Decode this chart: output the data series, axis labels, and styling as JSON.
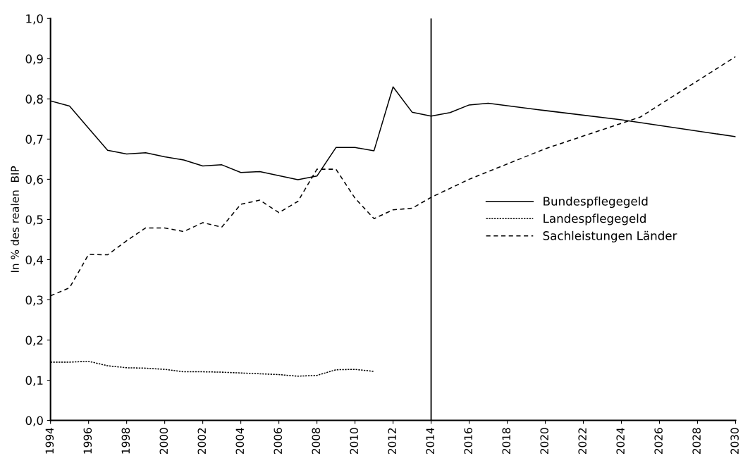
{
  "chart_data": {
    "type": "line",
    "ylabel": "In % des realen  BIP",
    "series": [
      {
        "name": "Bundespflegegeld",
        "color": "#000000",
        "line_style": "solid",
        "x": [
          1994,
          1995,
          1996,
          1997,
          1998,
          1999,
          2000,
          2001,
          2002,
          2003,
          2004,
          2005,
          2006,
          2007,
          2008,
          2009,
          2010,
          2011,
          2012,
          2013,
          2014,
          2015,
          2016,
          2017,
          2020,
          2024,
          2030
        ],
        "values": [
          0.795,
          0.782,
          0.727,
          0.672,
          0.663,
          0.666,
          0.656,
          0.648,
          0.633,
          0.636,
          0.617,
          0.619,
          0.609,
          0.599,
          0.608,
          0.679,
          0.679,
          0.671,
          0.83,
          0.767,
          0.757,
          0.766,
          0.785,
          0.789,
          0.771,
          0.748,
          0.706
        ]
      },
      {
        "name": "Landespflegegeld",
        "color": "#000000",
        "line_style": "dotted",
        "x": [
          1994,
          1995,
          1996,
          1997,
          1998,
          1999,
          2000,
          2001,
          2002,
          2003,
          2004,
          2005,
          2006,
          2007,
          2008,
          2009,
          2010,
          2011
        ],
        "values": [
          0.145,
          0.145,
          0.147,
          0.136,
          0.131,
          0.13,
          0.127,
          0.121,
          0.121,
          0.12,
          0.118,
          0.116,
          0.114,
          0.11,
          0.112,
          0.126,
          0.127,
          0.122
        ]
      },
      {
        "name": "Sachleistungen Länder",
        "color": "#000000",
        "line_style": "dashed",
        "x": [
          1994,
          1995,
          1996,
          1997,
          1998,
          1999,
          2000,
          2001,
          2002,
          2003,
          2004,
          2005,
          2006,
          2007,
          2008,
          2009,
          2010,
          2011,
          2012,
          2013,
          2014,
          2016,
          2020,
          2025,
          2030
        ],
        "values": [
          0.31,
          0.33,
          0.413,
          0.412,
          0.447,
          0.479,
          0.479,
          0.47,
          0.492,
          0.481,
          0.538,
          0.548,
          0.517,
          0.545,
          0.625,
          0.625,
          0.553,
          0.502,
          0.524,
          0.528,
          0.555,
          0.6,
          0.676,
          0.755,
          0.905
        ]
      }
    ],
    "xlim": [
      1994,
      2030
    ],
    "xticks": [
      1994,
      1996,
      1998,
      2000,
      2002,
      2004,
      2006,
      2008,
      2010,
      2012,
      2014,
      2016,
      2018,
      2020,
      2022,
      2024,
      2026,
      2028,
      2030
    ],
    "ylim": [
      0,
      1.0
    ],
    "yticks": [
      {
        "value": 0,
        "label": "0,0"
      },
      {
        "value": 0.1,
        "label": "0,1"
      },
      {
        "value": 0.2,
        "label": "0,2"
      },
      {
        "value": 0.3,
        "label": "0,3"
      },
      {
        "value": 0.4,
        "label": "0,4"
      },
      {
        "value": 0.5,
        "label": "0,5"
      },
      {
        "value": 0.6,
        "label": "0,6"
      },
      {
        "value": 0.7,
        "label": "0,7"
      },
      {
        "value": 0.8,
        "label": "0,8"
      },
      {
        "value": 0.9,
        "label": "0,9"
      },
      {
        "value": 1.0,
        "label": "1,0"
      }
    ],
    "ref_lines": [
      {
        "axis": "x",
        "value": 2014,
        "color": "#000000",
        "line_style": "solid"
      }
    ],
    "grid": false,
    "legend": "right",
    "marker": "none"
  }
}
